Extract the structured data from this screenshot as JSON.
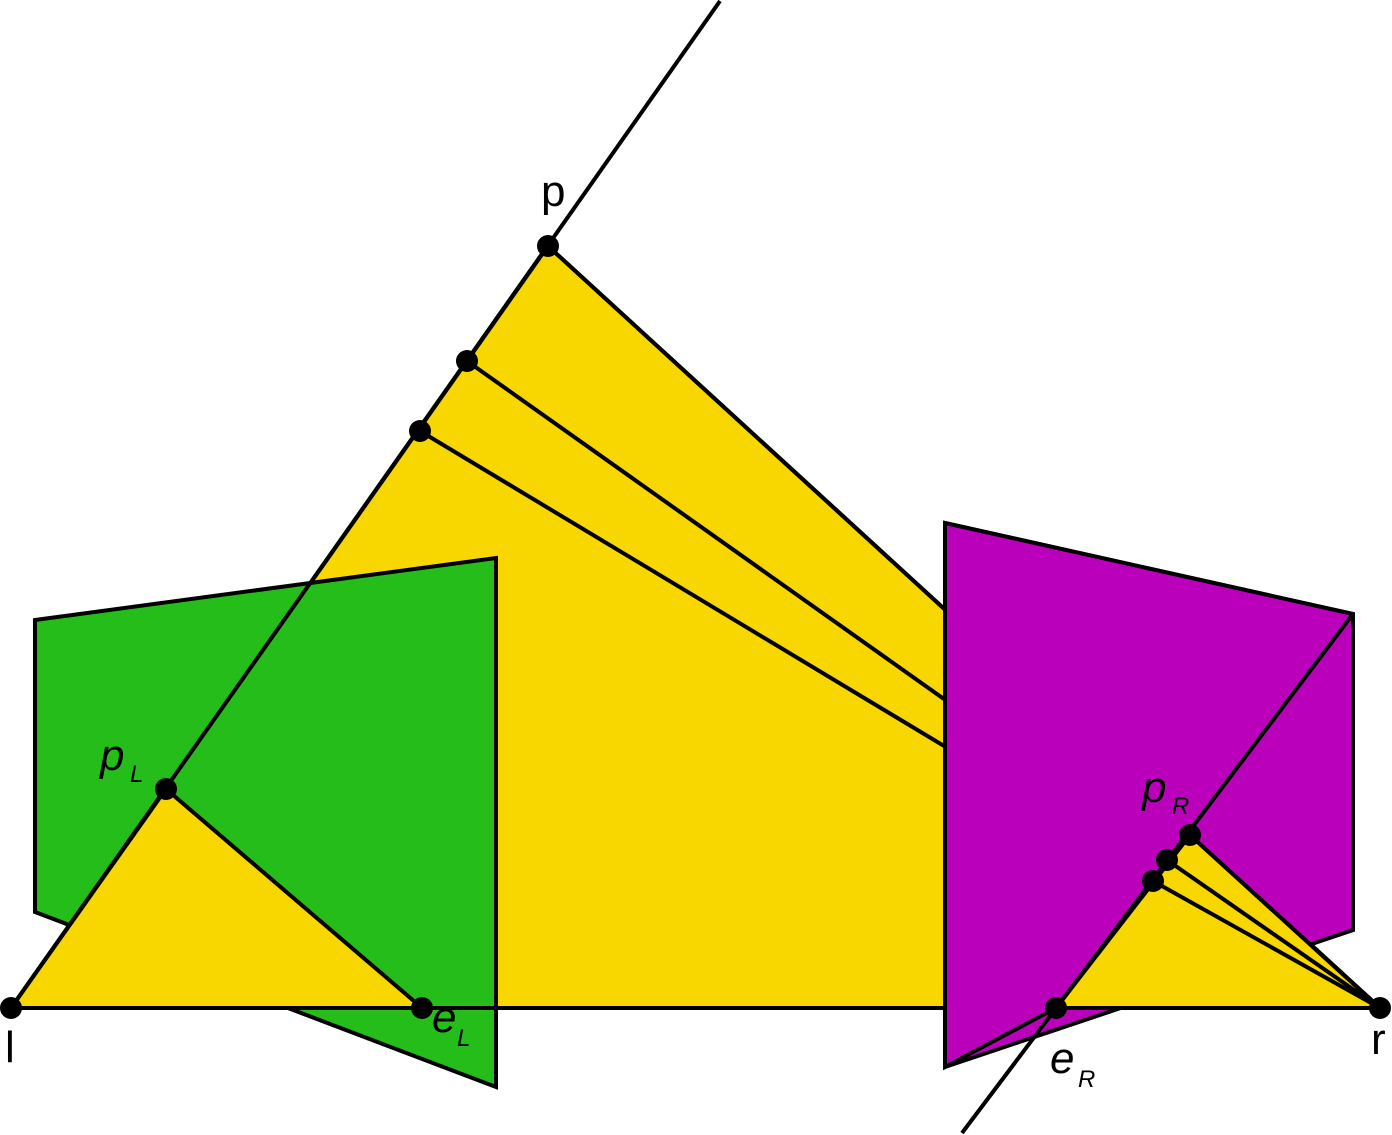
{
  "colors": {
    "triangle": "#F8D700",
    "left_image_plane": "#25BD19",
    "right_image_plane": "#BB00BB",
    "stroke": "#000000",
    "background": "#FFFFFF"
  },
  "labels": {
    "p": "p",
    "l": "l",
    "r": "r",
    "pL": "p",
    "pL_sub": "L",
    "eL": "e",
    "eL_sub": "L",
    "pR": "p",
    "pR_sub": "R",
    "eR": "e",
    "eR_sub": "R"
  }
}
